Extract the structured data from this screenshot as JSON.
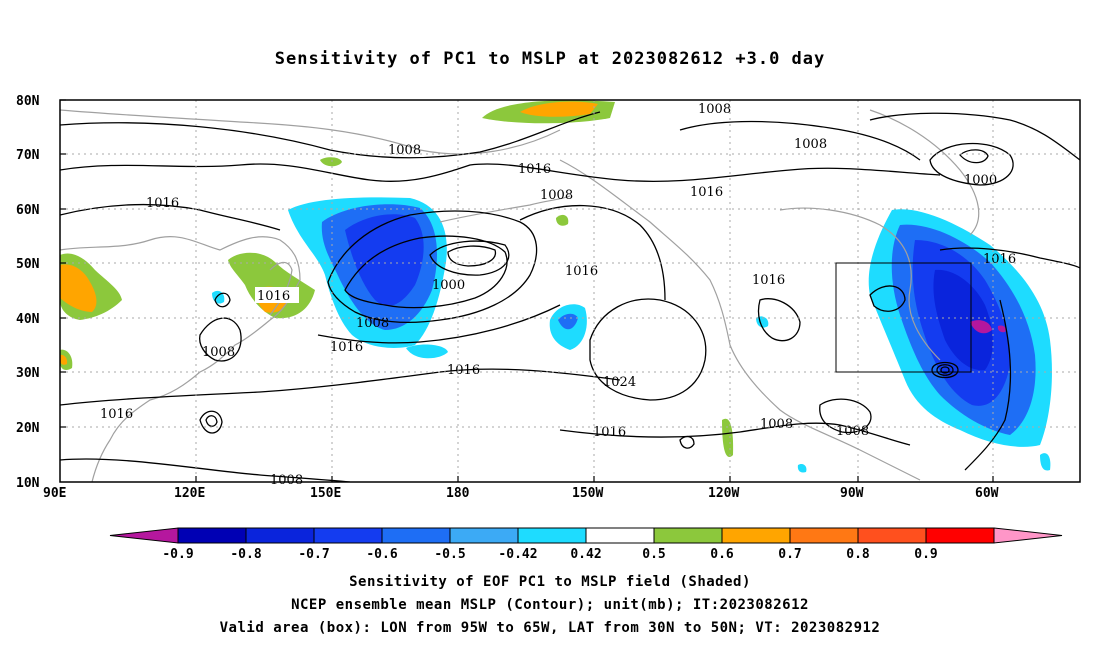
{
  "title": "Sensitivity of PC1 to MSLP at 2023082612 +3.0 day",
  "lat_labels": [
    "80N",
    "70N",
    "60N",
    "50N",
    "40N",
    "30N",
    "20N",
    "10N"
  ],
  "lon_labels": [
    "90E",
    "120E",
    "150E",
    "180",
    "150W",
    "120W",
    "90W",
    "60W"
  ],
  "colorbar": {
    "labels": [
      "-0.9",
      "-0.8",
      "-0.7",
      "-0.6",
      "-0.5",
      "-0.42",
      "0.42",
      "0.5",
      "0.6",
      "0.7",
      "0.8",
      "0.9"
    ],
    "colors": [
      "#b5179e",
      "#0000b4",
      "#0a24dc",
      "#143cf0",
      "#1e6ef5",
      "#3caaf5",
      "#1edcff",
      "#ffffff",
      "#8cc83c",
      "#ffa500",
      "#ff7814",
      "#ff501e",
      "#ff0000",
      "#ff96c8"
    ]
  },
  "contours": {
    "values": [
      "1008",
      "1008",
      "1016",
      "1008",
      "1016",
      "1016",
      "1008",
      "1016",
      "1000",
      "1016",
      "1016",
      "1008",
      "1016",
      "1016",
      "1016",
      "1000",
      "1008",
      "1016",
      "1016",
      "1008",
      "1024",
      "1008",
      "1008",
      "1016",
      "1008"
    ]
  },
  "box": {
    "lon_from": "95W",
    "lon_to": "65W",
    "lat_from": "30N",
    "lat_to": "50N"
  },
  "captions": [
    "Sensitivity of EOF PC1 to MSLP field (Shaded)",
    "NCEP ensemble mean MSLP (Contour); unit(mb); IT:2023082612",
    "Valid area (box): LON from 95W to 65W, LAT from 30N to 50N; VT: 2023082912"
  ]
}
